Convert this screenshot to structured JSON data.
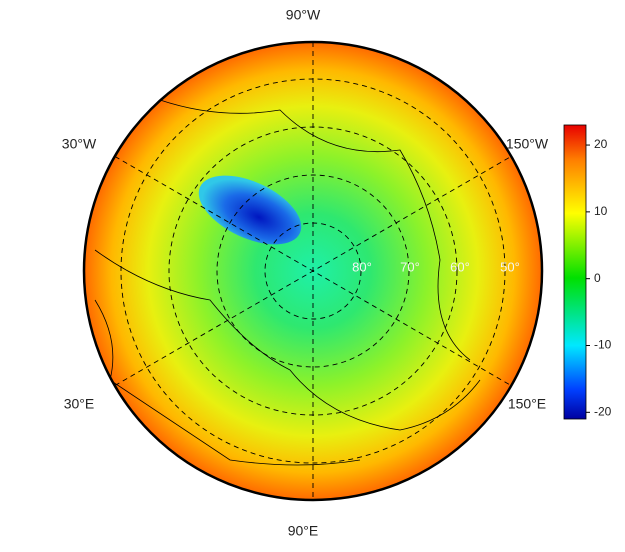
{
  "map": {
    "lon_labels": [
      "90°W",
      "30°W",
      "150°W",
      "30°E",
      "150°E",
      "90°E"
    ],
    "lat_labels": [
      "80°",
      "70°",
      "60°",
      "50°"
    ]
  },
  "colorbar": {
    "lim": [
      -21,
      23
    ],
    "ticks": [
      -20,
      -10,
      0,
      10,
      20
    ]
  }
}
